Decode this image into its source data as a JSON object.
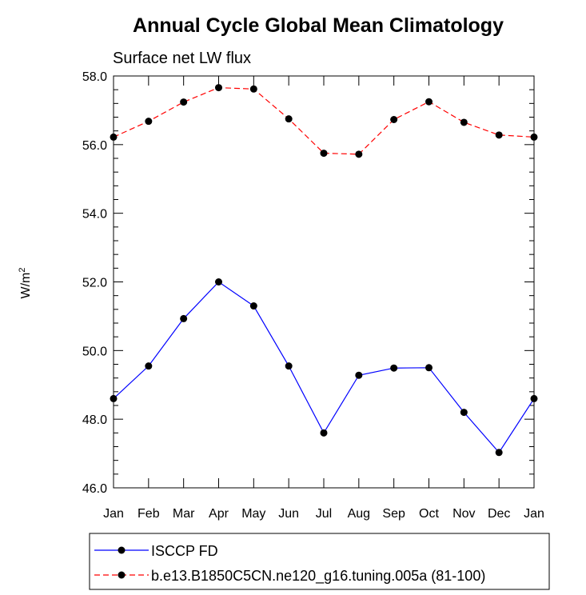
{
  "chart_data": {
    "type": "line",
    "title": "Annual Cycle Global Mean Climatology",
    "subtitle": "Surface net LW flux",
    "xlabel": "",
    "ylabel": "W/m",
    "ylabel_superscript": "2",
    "categories": [
      "Jan",
      "Feb",
      "Mar",
      "Apr",
      "May",
      "Jun",
      "Jul",
      "Aug",
      "Sep",
      "Oct",
      "Nov",
      "Dec",
      "Jan"
    ],
    "ylim": [
      46.0,
      58.0
    ],
    "yticks": [
      46.0,
      48.0,
      50.0,
      52.0,
      54.0,
      56.0,
      58.0
    ],
    "ytick_labels": [
      "46.0",
      "48.0",
      "50.0",
      "52.0",
      "54.0",
      "56.0",
      "58.0"
    ],
    "grid": false,
    "legend_position": "bottom-left",
    "series": [
      {
        "name": "ISCCP FD",
        "color": "#0000ff",
        "dashed": false,
        "values": [
          48.6,
          49.55,
          50.93,
          52.0,
          51.3,
          49.55,
          47.6,
          49.28,
          49.49,
          49.5,
          48.2,
          47.03,
          48.6
        ]
      },
      {
        "name": "b.e13.B1850C5CN.ne120_g16.tuning.005a (81-100)",
        "color": "#ff0000",
        "dashed": true,
        "values": [
          56.22,
          56.68,
          57.24,
          57.66,
          57.62,
          56.75,
          55.75,
          55.72,
          56.73,
          57.25,
          56.65,
          56.28,
          56.22
        ]
      }
    ]
  }
}
